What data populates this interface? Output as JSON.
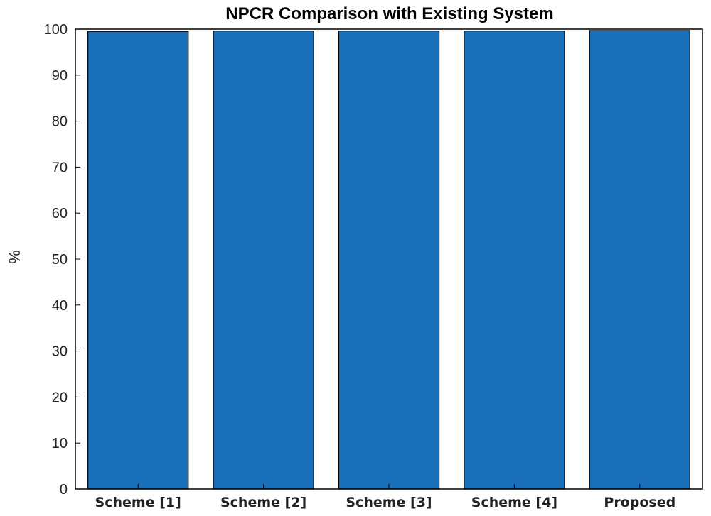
{
  "chart_data": {
    "type": "bar",
    "title": "NPCR Comparison with Existing System",
    "xlabel": "",
    "ylabel": "%",
    "categories": [
      "Scheme [1]",
      "Scheme [2]",
      "Scheme [3]",
      "Scheme [4]",
      "Proposed"
    ],
    "values": [
      99.5,
      99.6,
      99.6,
      99.6,
      99.7
    ],
    "ylim": [
      0,
      100
    ],
    "yticks": [
      0,
      10,
      20,
      30,
      40,
      50,
      60,
      70,
      80,
      90,
      100
    ],
    "grid": false,
    "legend": "none",
    "colors": {
      "bar_fill": "#1a6fba",
      "bar_edge": "#000000",
      "axis": "#000000"
    }
  }
}
